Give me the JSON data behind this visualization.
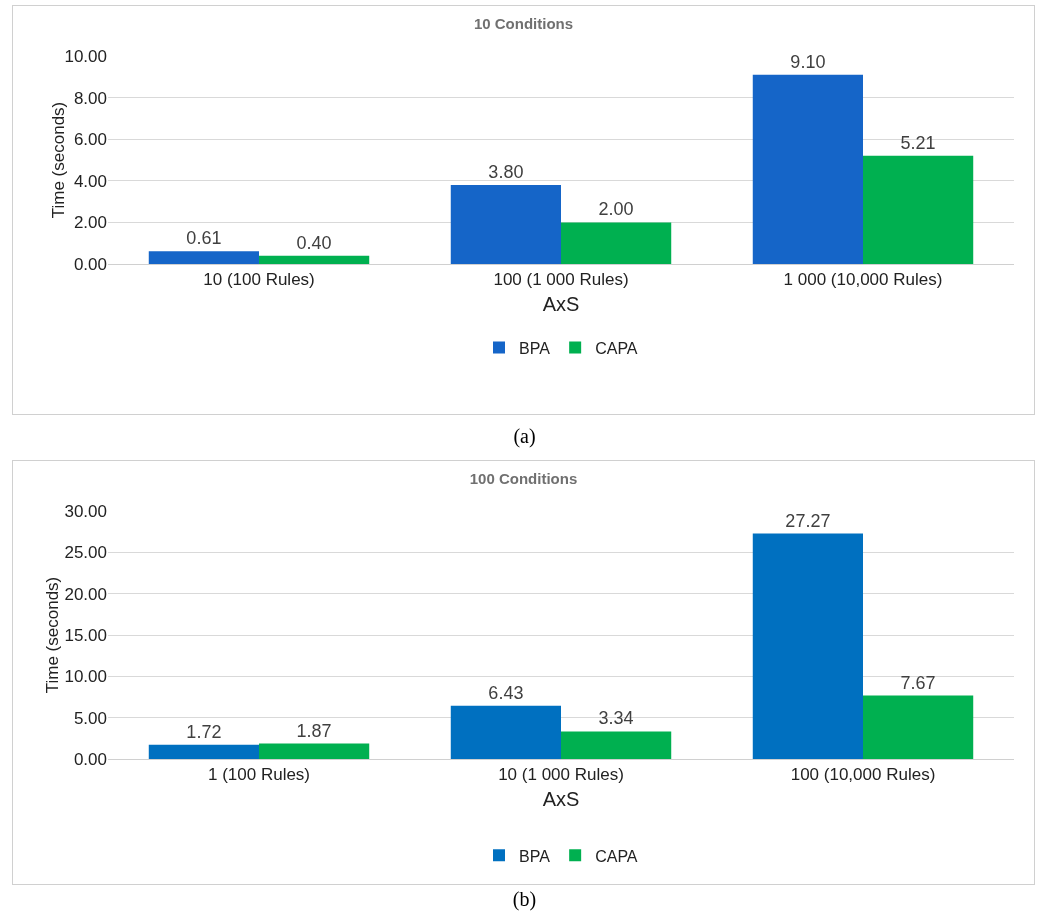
{
  "chart_data": [
    {
      "type": "bar",
      "title": "10 Conditions",
      "xlabel": "AxS",
      "ylabel": "Time (seconds)",
      "categories": [
        "10 (100 Rules)",
        "100 (1 000 Rules)",
        "1 000 (10,000 Rules)"
      ],
      "series": [
        {
          "name": "BPA",
          "color": "#1565c8",
          "values": [
            0.61,
            3.8,
            9.1
          ],
          "value_labels": [
            "0.61",
            "3.80",
            "9.10"
          ]
        },
        {
          "name": "CAPA",
          "color": "#00b050",
          "values": [
            0.4,
            2.0,
            5.21
          ],
          "value_labels": [
            "0.40",
            "2.00",
            "5.21"
          ]
        }
      ],
      "ylim": [
        0,
        10
      ],
      "yticks": [
        {
          "value": 0,
          "label": "0.00"
        },
        {
          "value": 2,
          "label": "2.00"
        },
        {
          "value": 4,
          "label": "4.00"
        },
        {
          "value": 6,
          "label": "6.00"
        },
        {
          "value": 8,
          "label": "8.00"
        },
        {
          "value": 10,
          "label": "10.00"
        }
      ],
      "grid": "y",
      "legend": "bottom",
      "annotations": [
        "(a)"
      ]
    },
    {
      "type": "bar",
      "title": "100 Conditions",
      "xlabel": "AxS",
      "ylabel": "Time (seconds)",
      "categories": [
        "1 (100 Rules)",
        "10 (1 000 Rules)",
        "100 (10,000 Rules)"
      ],
      "series": [
        {
          "name": "BPA",
          "color": "#0070c0",
          "values": [
            1.72,
            6.43,
            27.27
          ],
          "value_labels": [
            "1.72",
            "6.43",
            "27.27"
          ]
        },
        {
          "name": "CAPA",
          "color": "#00b050",
          "values": [
            1.87,
            3.34,
            7.67
          ],
          "value_labels": [
            "1.87",
            "3.34",
            "7.67"
          ]
        }
      ],
      "ylim": [
        0,
        30
      ],
      "yticks": [
        {
          "value": 0,
          "label": "0.00"
        },
        {
          "value": 5,
          "label": "5.00"
        },
        {
          "value": 10,
          "label": "10.00"
        },
        {
          "value": 15,
          "label": "15.00"
        },
        {
          "value": 20,
          "label": "20.00"
        },
        {
          "value": 25,
          "label": "25.00"
        },
        {
          "value": 30,
          "label": "30.00"
        }
      ],
      "grid": "y",
      "legend": "bottom",
      "annotations": [
        "(b)"
      ]
    }
  ]
}
